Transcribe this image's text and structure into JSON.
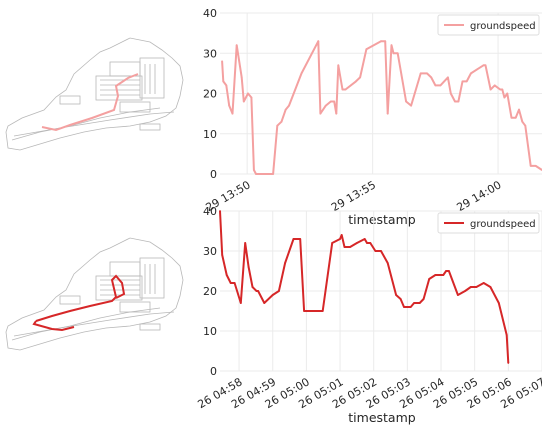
{
  "chart_data": [
    {
      "type": "line",
      "xlabel": "timestamp",
      "ylabel": "",
      "ylim": [
        0,
        40
      ],
      "yticks": [
        0,
        10,
        20,
        30,
        40
      ],
      "xlim": [
        "13:48:55",
        "14:01:45"
      ],
      "xticks": [
        {
          "label": "29 13:50",
          "value": "13:50:00"
        },
        {
          "label": "29 13:55",
          "value": "13:55:00"
        },
        {
          "label": "29 14:00",
          "value": "14:00:00"
        }
      ],
      "grid": true,
      "legend": "top-right",
      "series": [
        {
          "name": "groundspeed",
          "color": "#f4a0a0",
          "points": [
            [
              "13:49:00",
              28
            ],
            [
              "13:49:03",
              23
            ],
            [
              "13:49:10",
              22
            ],
            [
              "13:49:17",
              17
            ],
            [
              "13:49:25",
              15
            ],
            [
              "13:49:35",
              32
            ],
            [
              "13:49:47",
              24
            ],
            [
              "13:49:52",
              18
            ],
            [
              "13:50:02",
              20
            ],
            [
              "13:50:10",
              19
            ],
            [
              "13:50:16",
              1
            ],
            [
              "13:50:21",
              0
            ],
            [
              "13:51:02",
              0
            ],
            [
              "13:51:12",
              12
            ],
            [
              "13:51:22",
              13
            ],
            [
              "13:51:32",
              16
            ],
            [
              "13:51:40",
              17
            ],
            [
              "13:52:10",
              25
            ],
            [
              "13:52:50",
              33
            ],
            [
              "13:52:55",
              15
            ],
            [
              "13:53:08",
              17
            ],
            [
              "13:53:20",
              18
            ],
            [
              "13:53:28",
              18
            ],
            [
              "13:53:33",
              15
            ],
            [
              "13:53:38",
              27
            ],
            [
              "13:53:48",
              21
            ],
            [
              "13:53:55",
              21
            ],
            [
              "13:54:20",
              23
            ],
            [
              "13:54:30",
              24
            ],
            [
              "13:54:45",
              31
            ],
            [
              "13:55:20",
              33
            ],
            [
              "13:55:30",
              33
            ],
            [
              "13:55:36",
              15
            ],
            [
              "13:55:45",
              32
            ],
            [
              "13:55:50",
              30
            ],
            [
              "13:56:00",
              30
            ],
            [
              "13:56:20",
              18
            ],
            [
              "13:56:32",
              17
            ],
            [
              "13:56:55",
              25
            ],
            [
              "13:57:10",
              25
            ],
            [
              "13:57:20",
              24
            ],
            [
              "13:57:30",
              22
            ],
            [
              "13:57:42",
              22
            ],
            [
              "13:58:00",
              24
            ],
            [
              "13:58:07",
              20
            ],
            [
              "13:58:17",
              18
            ],
            [
              "13:58:25",
              18
            ],
            [
              "13:58:35",
              23
            ],
            [
              "13:58:45",
              23
            ],
            [
              "13:58:55",
              25
            ],
            [
              "13:59:10",
              26
            ],
            [
              "13:59:25",
              27
            ],
            [
              "13:59:30",
              27
            ],
            [
              "13:59:42",
              21
            ],
            [
              "13:59:52",
              22
            ],
            [
              "14:00:05",
              21
            ],
            [
              "14:00:10",
              21
            ],
            [
              "14:00:15",
              19
            ],
            [
              "14:00:22",
              20
            ],
            [
              "14:00:32",
              14
            ],
            [
              "14:00:42",
              14
            ],
            [
              "14:00:50",
              16
            ],
            [
              "14:00:58",
              13
            ],
            [
              "14:01:05",
              12
            ],
            [
              "14:01:18",
              2
            ],
            [
              "14:01:30",
              2
            ],
            [
              "14:01:45",
              1
            ]
          ]
        }
      ]
    },
    {
      "type": "line",
      "xlabel": "timestamp",
      "ylabel": "",
      "ylim": [
        0,
        40
      ],
      "yticks": [
        0,
        10,
        20,
        30,
        40
      ],
      "xlim": [
        "04:57:26",
        "05:07:00"
      ],
      "xticks": [
        {
          "label": "26 04:58",
          "value": "04:58:00"
        },
        {
          "label": "26 04:59",
          "value": "04:59:00"
        },
        {
          "label": "26 05:00",
          "value": "05:00:00"
        },
        {
          "label": "26 05:01",
          "value": "05:01:00"
        },
        {
          "label": "26 05:02",
          "value": "05:02:00"
        },
        {
          "label": "26 05:03",
          "value": "05:03:00"
        },
        {
          "label": "26 05:04",
          "value": "05:04:00"
        },
        {
          "label": "26 05:05",
          "value": "05:05:00"
        },
        {
          "label": "26 05:06",
          "value": "05:06:00"
        },
        {
          "label": "26 05:07",
          "value": "05:07:00"
        }
      ],
      "grid": true,
      "legend": "top-right",
      "series": [
        {
          "name": "groundspeed",
          "color": "#d62728",
          "points": [
            [
              "04:57:26",
              40
            ],
            [
              "04:57:30",
              29
            ],
            [
              "04:57:38",
              24
            ],
            [
              "04:57:45",
              22
            ],
            [
              "04:57:52",
              22
            ],
            [
              "04:58:03",
              17
            ],
            [
              "04:58:11",
              32
            ],
            [
              "04:58:17",
              26
            ],
            [
              "04:58:24",
              21
            ],
            [
              "04:58:31",
              20
            ],
            [
              "04:58:34",
              20
            ],
            [
              "04:58:45",
              17
            ],
            [
              "04:59:00",
              19
            ],
            [
              "04:59:11",
              20
            ],
            [
              "04:59:22",
              27
            ],
            [
              "04:59:37",
              33
            ],
            [
              "04:59:49",
              33
            ],
            [
              "04:59:56",
              15
            ],
            [
              "05:00:29",
              15
            ],
            [
              "05:00:46",
              32
            ],
            [
              "05:01:00",
              33
            ],
            [
              "05:01:03",
              34
            ],
            [
              "05:01:08",
              31
            ],
            [
              "05:01:18",
              31
            ],
            [
              "05:01:30",
              32
            ],
            [
              "05:01:44",
              33
            ],
            [
              "05:01:48",
              32
            ],
            [
              "05:01:54",
              32
            ],
            [
              "05:02:03",
              30
            ],
            [
              "05:02:13",
              30
            ],
            [
              "05:02:25",
              27
            ],
            [
              "05:02:40",
              19
            ],
            [
              "05:02:48",
              18
            ],
            [
              "05:02:54",
              16
            ],
            [
              "05:03:06",
              16
            ],
            [
              "05:03:12",
              17
            ],
            [
              "05:03:22",
              17
            ],
            [
              "05:03:29",
              18
            ],
            [
              "05:03:39",
              23
            ],
            [
              "05:03:50",
              24
            ],
            [
              "05:04:04",
              24
            ],
            [
              "05:04:09",
              25
            ],
            [
              "05:04:14",
              25
            ],
            [
              "05:04:30",
              19
            ],
            [
              "05:04:43",
              20
            ],
            [
              "05:04:53",
              21
            ],
            [
              "05:05:03",
              21
            ],
            [
              "05:05:16",
              22
            ],
            [
              "05:05:28",
              21
            ],
            [
              "05:05:43",
              17
            ],
            [
              "05:05:57",
              9
            ],
            [
              "05:06:00",
              2
            ]
          ]
        }
      ]
    }
  ]
}
